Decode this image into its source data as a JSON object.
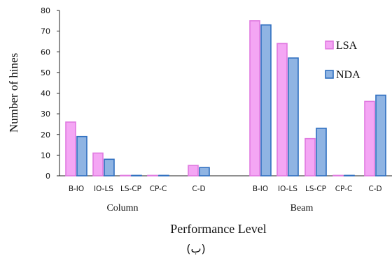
{
  "chart_data": {
    "type": "bar",
    "ylabel": "Number of hines",
    "xlabel": "Performance Level",
    "ylim": [
      0,
      80
    ],
    "yticks": [
      0,
      10,
      20,
      30,
      40,
      50,
      60,
      70,
      80
    ],
    "groups": [
      {
        "label": "Column",
        "categories": [
          "B-IO",
          "IO-LS",
          "LS-CP",
          "CP-C",
          "C-D"
        ]
      },
      {
        "label": "Beam",
        "categories": [
          "B-IO",
          "IO-LS",
          "LS-CP",
          "CP-C",
          "C-D"
        ]
      }
    ],
    "series": [
      {
        "name": "LSA",
        "color": "#f4a6f4",
        "border": "#e07ae0",
        "values": [
          26,
          11,
          0,
          0,
          5,
          75,
          64,
          18,
          0,
          36
        ]
      },
      {
        "name": "NDA",
        "color": "#8fb4e3",
        "border": "#2f6fc0",
        "values": [
          19,
          8,
          0,
          0,
          4,
          73,
          57,
          23,
          0,
          39
        ]
      }
    ],
    "legend_position": "right",
    "grid": false
  },
  "caption": "(ب)"
}
